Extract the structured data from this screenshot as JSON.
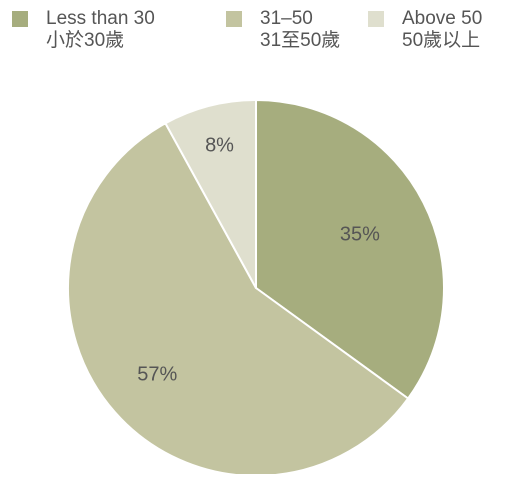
{
  "colors": {
    "slice_less_than_30": "#a6ad7e",
    "slice_31_50": "#c3c4a0",
    "slice_above_50": "#dfdfce",
    "slice_border": "#ffffff",
    "text": "#555555"
  },
  "legend": [
    {
      "en": "Less than 30",
      "zh": "小於30歲"
    },
    {
      "en": "31–50",
      "zh": "31至50歲"
    },
    {
      "en": "Above 50",
      "zh": "50歲以上"
    }
  ],
  "chart_data": {
    "type": "pie",
    "categories": [
      "Less than 30 小於30歲",
      "31–50 31至50歲",
      "Above 50 50歲以上"
    ],
    "values": [
      35,
      57,
      8
    ],
    "labels": [
      "35%",
      "57%",
      "8%"
    ],
    "start": "12 o'clock",
    "direction": "clockwise",
    "legend_position": "top"
  }
}
